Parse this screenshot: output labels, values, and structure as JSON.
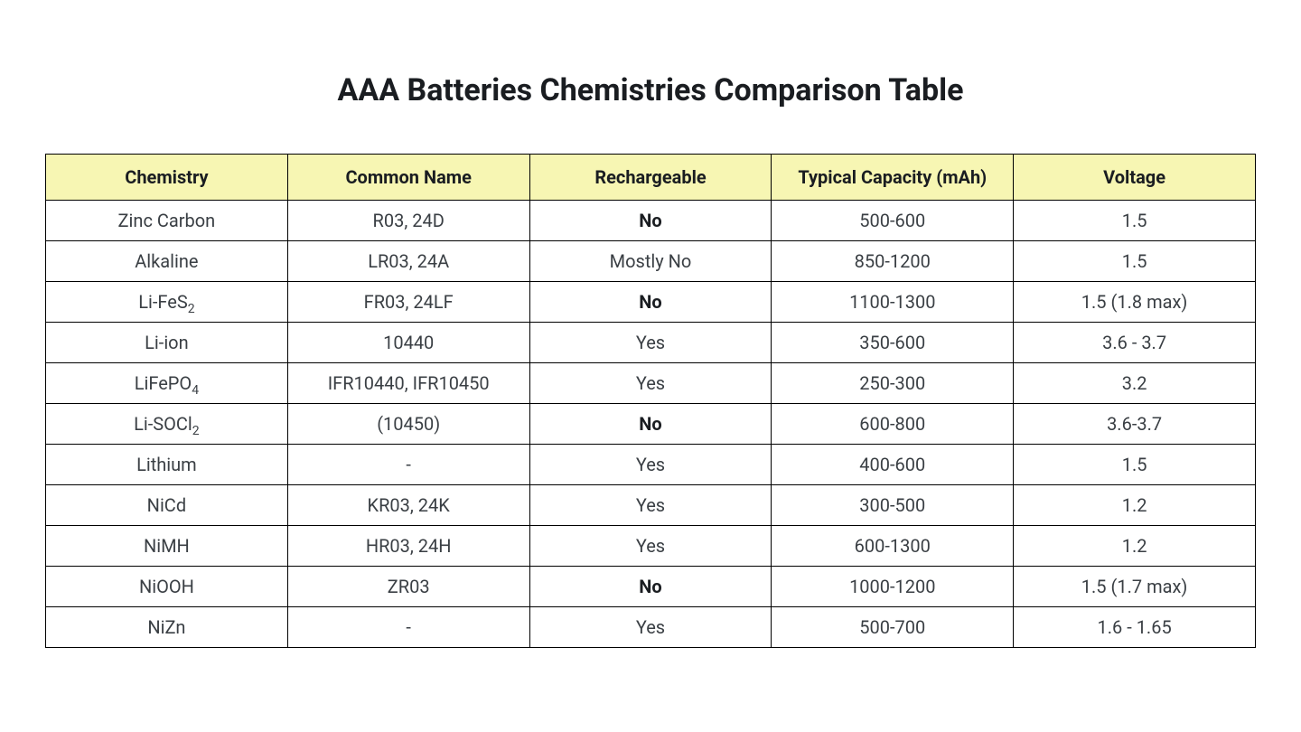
{
  "title": "AAA Batteries Chemistries Comparison Table",
  "table": {
    "type": "table",
    "header_bg": "#f7f6b3",
    "border_color": "#000000",
    "background_color": "#ffffff",
    "text_color": "#3a3f44",
    "header_text_color": "#1a1d21",
    "header_fontsize": 20,
    "cell_fontsize": 20,
    "title_fontsize": 34,
    "columns": [
      {
        "label": "Chemistry",
        "width": "20%"
      },
      {
        "label": "Common Name",
        "width": "20%"
      },
      {
        "label": "Rechargeable",
        "width": "20%"
      },
      {
        "label": "Typical Capacity (mAh)",
        "width": "20%"
      },
      {
        "label": "Voltage",
        "width": "20%"
      }
    ],
    "rows": [
      {
        "chemistry": {
          "text": "Zinc Carbon"
        },
        "common_name": "R03, 24D",
        "rechargeable": {
          "text": "No",
          "bold": true
        },
        "capacity": "500-600",
        "voltage": "1.5"
      },
      {
        "chemistry": {
          "text": "Alkaline"
        },
        "common_name": "LR03, 24A",
        "rechargeable": {
          "text": "Mostly No",
          "bold": false
        },
        "capacity": "850-1200",
        "voltage": "1.5"
      },
      {
        "chemistry": {
          "text": "Li-FeS",
          "sub": "2"
        },
        "common_name": "FR03, 24LF",
        "rechargeable": {
          "text": "No",
          "bold": true
        },
        "capacity": "1100-1300",
        "voltage": "1.5 (1.8 max)"
      },
      {
        "chemistry": {
          "text": "Li-ion"
        },
        "common_name": "10440",
        "rechargeable": {
          "text": "Yes",
          "bold": false
        },
        "capacity": "350-600",
        "voltage": "3.6 - 3.7"
      },
      {
        "chemistry": {
          "text": "LiFePO",
          "sub": "4"
        },
        "common_name": "IFR10440, IFR10450",
        "rechargeable": {
          "text": "Yes",
          "bold": false
        },
        "capacity": "250-300",
        "voltage": "3.2"
      },
      {
        "chemistry": {
          "text": "Li-SOCl",
          "sub": "2"
        },
        "common_name": "(10450)",
        "rechargeable": {
          "text": "No",
          "bold": true
        },
        "capacity": "600-800",
        "voltage": "3.6-3.7"
      },
      {
        "chemistry": {
          "text": "Lithium"
        },
        "common_name": "-",
        "rechargeable": {
          "text": "Yes",
          "bold": false
        },
        "capacity": "400-600",
        "voltage": "1.5"
      },
      {
        "chemistry": {
          "text": "NiCd"
        },
        "common_name": "KR03, 24K",
        "rechargeable": {
          "text": "Yes",
          "bold": false
        },
        "capacity": "300-500",
        "voltage": "1.2"
      },
      {
        "chemistry": {
          "text": "NiMH"
        },
        "common_name": "HR03, 24H",
        "rechargeable": {
          "text": "Yes",
          "bold": false
        },
        "capacity": "600-1300",
        "voltage": "1.2"
      },
      {
        "chemistry": {
          "text": "NiOOH"
        },
        "common_name": "ZR03",
        "rechargeable": {
          "text": "No",
          "bold": true
        },
        "capacity": "1000-1200",
        "voltage": "1.5 (1.7 max)"
      },
      {
        "chemistry": {
          "text": "NiZn"
        },
        "common_name": "-",
        "rechargeable": {
          "text": "Yes",
          "bold": false
        },
        "capacity": "500-700",
        "voltage": "1.6 - 1.65"
      }
    ]
  }
}
